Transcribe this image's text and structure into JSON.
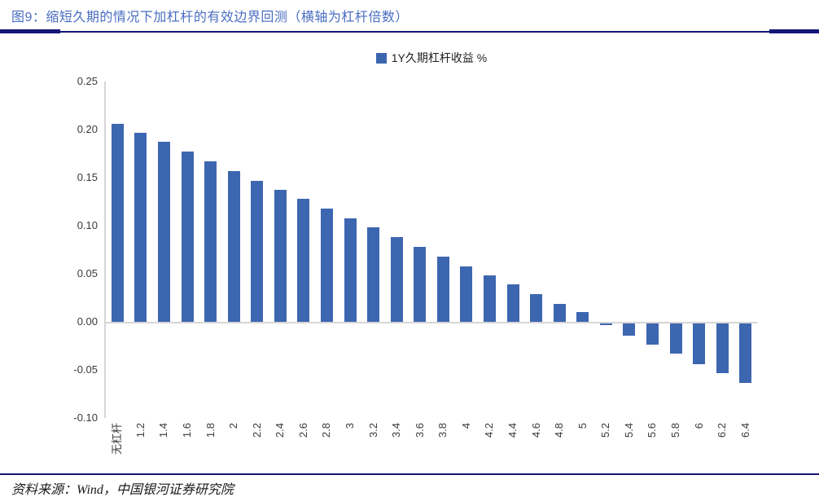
{
  "header": {
    "title": "图9：缩短久期的情况下加杠杆的有效边界回测（横轴为杠杆倍数）"
  },
  "chart_data": {
    "type": "bar",
    "legend_label": "1Y久期杠杆收益 %",
    "legend_position": "top-center",
    "categories": [
      "无杠杆",
      "1.2",
      "1.4",
      "1.6",
      "1.8",
      "2",
      "2.2",
      "2.4",
      "2.6",
      "2.8",
      "3",
      "3.2",
      "3.4",
      "3.6",
      "3.8",
      "4",
      "4.2",
      "4.4",
      "4.6",
      "4.8",
      "5",
      "5.2",
      "5.4",
      "5.6",
      "5.8",
      "6",
      "6.2",
      "6.4"
    ],
    "values": [
      0.206,
      0.197,
      0.187,
      0.177,
      0.167,
      0.157,
      0.147,
      0.137,
      0.128,
      0.118,
      0.108,
      0.098,
      0.088,
      0.078,
      0.068,
      0.058,
      0.048,
      0.039,
      0.029,
      0.019,
      0.01,
      -0.002,
      -0.013,
      -0.022,
      -0.031,
      -0.042,
      -0.052,
      -0.062
    ],
    "ylim": [
      -0.1,
      0.25
    ],
    "y_ticks": [
      "0.25",
      "0.20",
      "0.15",
      "0.10",
      "0.05",
      "0.00",
      "-0.05",
      "-0.10"
    ],
    "grid": "none",
    "xlabel": "",
    "ylabel": ""
  },
  "footer": {
    "source": "资料来源：Wind，中国银河证券研究院"
  },
  "colors": {
    "bar": "#3D66B0",
    "title_text": "#4A6EC1",
    "divider_navy": "#16167A",
    "axis_gray": "#D6D6D6",
    "tick_text": "#3a3a3a"
  }
}
